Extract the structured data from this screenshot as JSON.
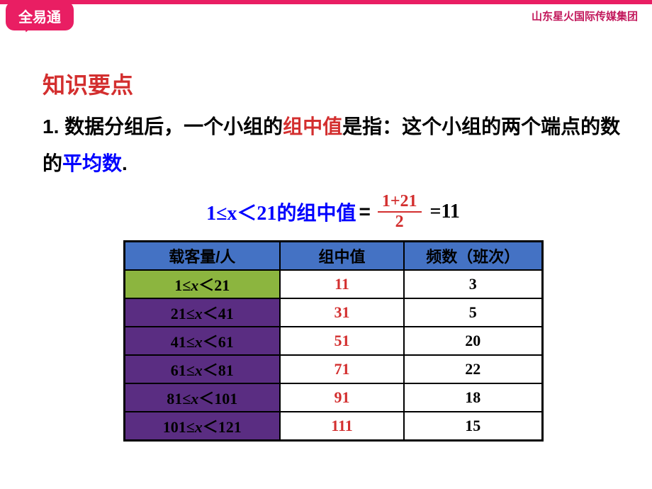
{
  "header": {
    "logo_text": "全易通",
    "right_text": "山东星火国际传媒集团"
  },
  "title": "知识要点",
  "paragraph": {
    "prefix": "1. 数据分组后，一个小组的",
    "red1": "组中值",
    "mid1": "是指：这个小组的两个端点的数的",
    "blue1": "平均数",
    "suffix": "."
  },
  "formula": {
    "range_text": "1≤x＜21",
    "label": " 的组中值",
    "equals": "=",
    "numerator": "1+21",
    "denominator": "2",
    "result": "=11"
  },
  "table": {
    "headers": {
      "col1": "载客量/人",
      "col2": "组中值",
      "col3": "频数（班次）"
    },
    "rows": [
      {
        "range_lo": "1",
        "range_hi": "21",
        "mid": "11",
        "freq": "3",
        "row_bg": "green"
      },
      {
        "range_lo": "21",
        "range_hi": "41",
        "mid": "31",
        "freq": "5",
        "row_bg": "purple"
      },
      {
        "range_lo": "41",
        "range_hi": "61",
        "mid": "51",
        "freq": "20",
        "row_bg": "purple"
      },
      {
        "range_lo": "61",
        "range_hi": "81",
        "mid": "71",
        "freq": "22",
        "row_bg": "purple"
      },
      {
        "range_lo": "81",
        "range_hi": "101",
        "mid": "91",
        "freq": "18",
        "row_bg": "purple"
      },
      {
        "range_lo": "101",
        "range_hi": "121",
        "mid": "111",
        "freq": "15",
        "row_bg": "purple"
      }
    ]
  },
  "colors": {
    "brand_pink": "#e91e63",
    "header_blue": "#4472c4",
    "row_green": "#8cb53f",
    "row_purple": "#5a2d82",
    "text_red": "#d32f2f",
    "text_blue": "#0000ff"
  }
}
